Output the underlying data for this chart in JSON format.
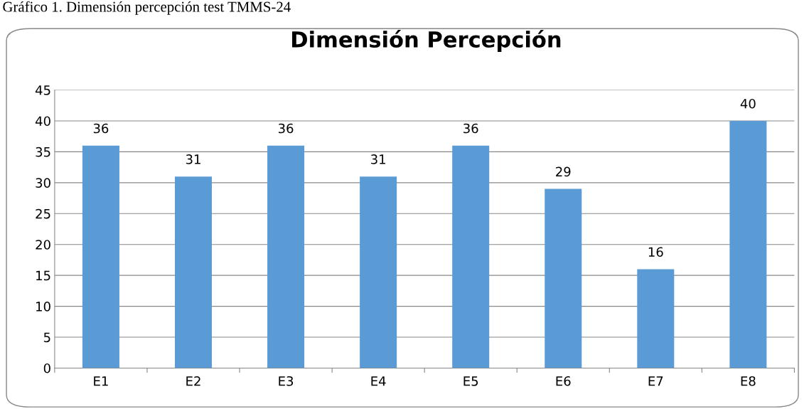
{
  "chart_data": {
    "type": "bar",
    "title": "Dimensión Percepción",
    "annotations": [
      "Gráfico 1. Dimensión percepción test TMMS-24"
    ],
    "categories": [
      "E1",
      "E2",
      "E3",
      "E4",
      "E5",
      "E6",
      "E7",
      "E8"
    ],
    "values": [
      36,
      31,
      36,
      31,
      36,
      29,
      16,
      40
    ],
    "color": "#5b9bd5",
    "ylim": [
      0,
      45
    ],
    "yticks": [
      0,
      5,
      10,
      15,
      20,
      25,
      30,
      35,
      40,
      45
    ],
    "grid": "y",
    "data_labels": true
  }
}
